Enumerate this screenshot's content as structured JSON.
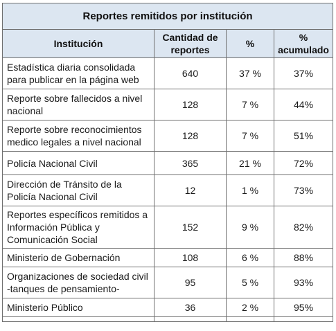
{
  "table": {
    "title": "Reportes remitidos por institución",
    "headers": {
      "institucion": "Institución",
      "cantidad": "Cantidad de reportes",
      "porcentaje": "%",
      "acumulado": "% acumulado"
    },
    "rows": [
      {
        "institucion": "Estadística diaria consolidada para publicar en la página web",
        "cantidad": "640",
        "porcentaje": "37 %",
        "acumulado": "37%"
      },
      {
        "institucion": "Reporte sobre fallecidos a nivel nacional",
        "cantidad": "128",
        "porcentaje": "7 %",
        "acumulado": "44%"
      },
      {
        "institucion": "Reporte sobre reconocimientos medico legales a nivel nacional",
        "cantidad": "128",
        "porcentaje": "7 %",
        "acumulado": "51%"
      },
      {
        "institucion": "Policía Nacional Civil",
        "cantidad": "365",
        "porcentaje": "21 %",
        "acumulado": "72%"
      },
      {
        "institucion": "Dirección de Tránsito de la Policía Nacional Civil",
        "cantidad": "12",
        "porcentaje": "1 %",
        "acumulado": "73%"
      },
      {
        "institucion": "Reportes específicos remitidos a Información Pública y Comunicación Social",
        "cantidad": "152",
        "porcentaje": "9 %",
        "acumulado": "82%"
      },
      {
        "institucion": "Ministerio de Gobernación",
        "cantidad": "108",
        "porcentaje": "6 %",
        "acumulado": "88%"
      },
      {
        "institucion": "Organizaciones de sociedad civil -tanques de pensamiento-",
        "cantidad": "95",
        "porcentaje": "5 %",
        "acumulado": "93%"
      },
      {
        "institucion": "Ministerio Público",
        "cantidad": "36",
        "porcentaje": "2 %",
        "acumulado": "95%"
      }
    ]
  }
}
